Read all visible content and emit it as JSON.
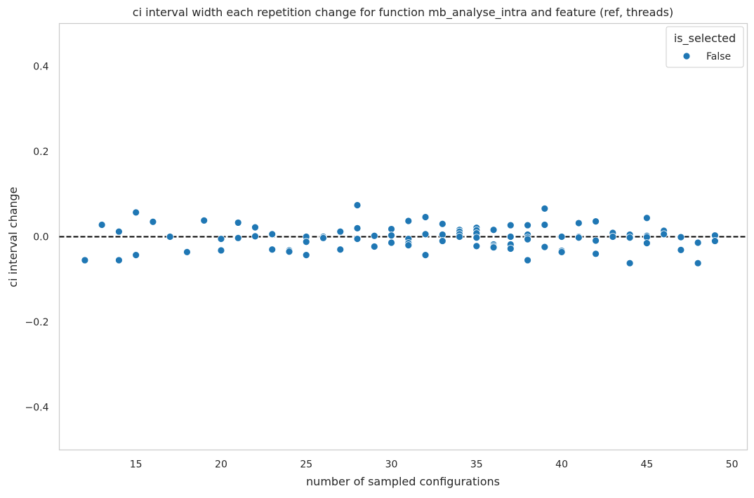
{
  "chart_data": {
    "type": "scatter",
    "title": "ci interval width each repetition change for function mb_analyse_intra and feature (ref, threads)",
    "xlabel": "number of sampled configurations",
    "ylabel": "ci interval change",
    "xlim": [
      10.5,
      50.9
    ],
    "ylim": [
      -0.5,
      0.5
    ],
    "xticks": [
      15,
      20,
      25,
      30,
      35,
      40,
      45,
      50
    ],
    "yticks": [
      0.4,
      0.2,
      0.0,
      -0.2,
      -0.4
    ],
    "ytick_labels": [
      "0.4",
      "0.2",
      "0.0",
      "−0.2",
      "−0.4"
    ],
    "reference_line": {
      "y": 0,
      "style": "dashed",
      "color": "#000000"
    },
    "grid": false,
    "legend": {
      "title": "is_selected",
      "position": "top-right",
      "entries": [
        {
          "label": "False",
          "color": "#1f77b4"
        }
      ]
    },
    "series": [
      {
        "name": "False",
        "color": "#1f77b4",
        "points": [
          [
            12,
            -0.055
          ],
          [
            13,
            0.028
          ],
          [
            14,
            0.012
          ],
          [
            14,
            -0.055
          ],
          [
            15,
            0.057
          ],
          [
            15,
            -0.043
          ],
          [
            16,
            0.035
          ],
          [
            17,
            0.0
          ],
          [
            18,
            -0.036
          ],
          [
            19,
            0.038
          ],
          [
            20,
            -0.005
          ],
          [
            20,
            -0.032
          ],
          [
            21,
            0.033
          ],
          [
            21,
            -0.003
          ],
          [
            22,
            0.022
          ],
          [
            22,
            0.001
          ],
          [
            23,
            0.006
          ],
          [
            23,
            -0.03
          ],
          [
            24,
            -0.032
          ],
          [
            24,
            -0.035
          ],
          [
            25,
            0.0
          ],
          [
            25,
            -0.012
          ],
          [
            25,
            -0.043
          ],
          [
            26,
            0.0
          ],
          [
            26,
            -0.003
          ],
          [
            27,
            0.012
          ],
          [
            27,
            -0.03
          ],
          [
            28,
            0.074
          ],
          [
            28,
            0.02
          ],
          [
            28,
            -0.005
          ],
          [
            29,
            0.002
          ],
          [
            29,
            -0.023
          ],
          [
            30,
            0.018
          ],
          [
            30,
            0.003
          ],
          [
            30,
            -0.014
          ],
          [
            31,
            0.037
          ],
          [
            31,
            -0.005
          ],
          [
            31,
            -0.015
          ],
          [
            31,
            -0.02
          ],
          [
            32,
            0.046
          ],
          [
            32,
            0.006
          ],
          [
            32,
            -0.043
          ],
          [
            33,
            0.03
          ],
          [
            33,
            0.005
          ],
          [
            33,
            -0.01
          ],
          [
            34,
            0.016
          ],
          [
            34,
            0.012
          ],
          [
            34,
            0.006
          ],
          [
            34,
            0.0
          ],
          [
            35,
            0.021
          ],
          [
            35,
            0.015
          ],
          [
            35,
            0.008
          ],
          [
            35,
            -0.002
          ],
          [
            35,
            -0.022
          ],
          [
            36,
            0.016
          ],
          [
            36,
            -0.018
          ],
          [
            36,
            -0.022
          ],
          [
            36,
            -0.025
          ],
          [
            37,
            0.027
          ],
          [
            37,
            0.0
          ],
          [
            37,
            -0.018
          ],
          [
            37,
            -0.028
          ],
          [
            38,
            0.027
          ],
          [
            38,
            0.005
          ],
          [
            38,
            -0.002
          ],
          [
            38,
            -0.006
          ],
          [
            38,
            -0.055
          ],
          [
            39,
            0.066
          ],
          [
            39,
            0.028
          ],
          [
            39,
            -0.024
          ],
          [
            40,
            0.0
          ],
          [
            40,
            -0.033
          ],
          [
            40,
            -0.036
          ],
          [
            41,
            0.032
          ],
          [
            41,
            0.0
          ],
          [
            41,
            -0.002
          ],
          [
            42,
            0.036
          ],
          [
            42,
            -0.009
          ],
          [
            42,
            -0.04
          ],
          [
            43,
            0.009
          ],
          [
            43,
            0.0
          ],
          [
            44,
            0.005
          ],
          [
            44,
            -0.002
          ],
          [
            44,
            -0.062
          ],
          [
            45,
            0.044
          ],
          [
            45,
            0.002
          ],
          [
            45,
            -0.001
          ],
          [
            45,
            -0.015
          ],
          [
            46,
            0.014
          ],
          [
            46,
            0.006
          ],
          [
            47,
            -0.001
          ],
          [
            47,
            -0.031
          ],
          [
            48,
            -0.014
          ],
          [
            48,
            -0.062
          ],
          [
            49,
            0.003
          ],
          [
            49,
            -0.01
          ]
        ]
      }
    ]
  }
}
